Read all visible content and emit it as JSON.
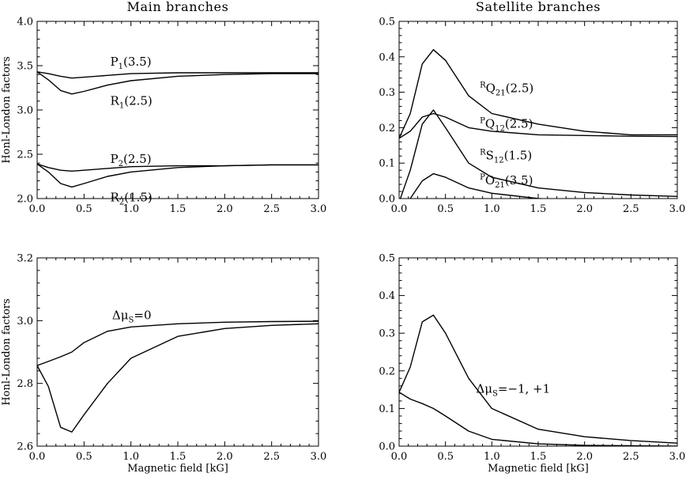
{
  "chart_data": [
    {
      "type": "line",
      "title": "Main branches",
      "xlabel": "",
      "ylabel": "Honl-London factors",
      "xlim": [
        0,
        3
      ],
      "ylim": [
        2,
        4
      ],
      "xticks": [
        "0.0",
        "0.5",
        "1.0",
        "1.5",
        "2.0",
        "2.5",
        "3.0"
      ],
      "yticks": [
        "2.0",
        "2.5",
        "3.0",
        "3.5",
        "4.0"
      ],
      "series": [
        {
          "x": [
            0,
            0.12,
            0.25,
            0.37,
            0.5,
            0.75,
            1.0,
            1.5,
            2.0,
            2.5,
            3.0
          ],
          "values": [
            3.43,
            3.41,
            3.38,
            3.36,
            3.37,
            3.39,
            3.41,
            3.42,
            3.42,
            3.42,
            3.42
          ]
        },
        {
          "x": [
            0,
            0.12,
            0.25,
            0.37,
            0.5,
            0.75,
            1.0,
            1.5,
            2.0,
            2.5,
            3.0
          ],
          "values": [
            3.43,
            3.34,
            3.22,
            3.18,
            3.21,
            3.28,
            3.33,
            3.38,
            3.4,
            3.41,
            3.41
          ]
        },
        {
          "x": [
            0,
            0.12,
            0.25,
            0.37,
            0.5,
            0.75,
            1.0,
            1.5,
            2.0,
            2.5,
            3.0
          ],
          "values": [
            2.39,
            2.35,
            2.32,
            2.31,
            2.32,
            2.34,
            2.36,
            2.37,
            2.37,
            2.38,
            2.38
          ]
        },
        {
          "x": [
            0,
            0.12,
            0.25,
            0.37,
            0.5,
            0.75,
            1.0,
            1.5,
            2.0,
            2.5,
            3.0
          ],
          "values": [
            2.39,
            2.3,
            2.17,
            2.13,
            2.17,
            2.25,
            2.3,
            2.35,
            2.37,
            2.38,
            2.38
          ]
        }
      ],
      "annotations": [
        {
          "base": "P",
          "sub": "1",
          "rest": "(3.5)",
          "x": 0.78,
          "y": 3.5
        },
        {
          "base": "R",
          "sub": "1",
          "rest": "(2.5)",
          "x": 0.78,
          "y": 3.06
        },
        {
          "base": "P",
          "sub": "2",
          "rest": "(2.5)",
          "x": 0.78,
          "y": 2.4
        },
        {
          "base": "R",
          "sub": "2",
          "rest": "(1.5)",
          "x": 0.78,
          "y": 1.97
        }
      ]
    },
    {
      "type": "line",
      "title": "Satellite branches",
      "xlabel": "",
      "ylabel": "",
      "xlim": [
        0,
        3
      ],
      "ylim": [
        0,
        0.5
      ],
      "xticks": [
        "0.0",
        "0.5",
        "1.0",
        "1.5",
        "2.0",
        "2.5",
        "3.0"
      ],
      "yticks": [
        "0.0",
        "0.1",
        "0.2",
        "0.3",
        "0.4",
        "0.5"
      ],
      "series": [
        {
          "x": [
            0,
            0.12,
            0.25,
            0.37,
            0.5,
            0.75,
            1.0,
            1.5,
            2.0,
            2.5,
            3.0
          ],
          "values": [
            0.17,
            0.24,
            0.38,
            0.42,
            0.39,
            0.29,
            0.24,
            0.21,
            0.19,
            0.18,
            0.18
          ]
        },
        {
          "x": [
            0,
            0.12,
            0.25,
            0.37,
            0.5,
            0.75,
            1.0,
            1.5,
            2.0,
            2.5,
            3.0
          ],
          "values": [
            0.17,
            0.19,
            0.23,
            0.24,
            0.23,
            0.2,
            0.19,
            0.18,
            0.178,
            0.176,
            0.175
          ]
        },
        {
          "x": [
            0,
            0.12,
            0.25,
            0.37,
            0.5,
            0.75,
            1.0,
            1.5,
            2.0,
            2.5,
            3.0
          ],
          "values": [
            -0.01,
            0.08,
            0.21,
            0.25,
            0.2,
            0.1,
            0.06,
            0.03,
            0.017,
            0.01,
            0.006
          ]
        },
        {
          "x": [
            0,
            0.12,
            0.25,
            0.37,
            0.5,
            0.75,
            1.0,
            1.5,
            2.0,
            2.5,
            3.0
          ],
          "values": [
            -0.01,
            0.0,
            0.05,
            0.07,
            0.06,
            0.03,
            0.015,
            0.0,
            -0.005,
            -0.008,
            -0.01
          ]
        }
      ],
      "annotations": [
        {
          "sup": "R",
          "base": "Q",
          "sub": "21",
          "rest": "(2.5)",
          "x": 0.87,
          "y": 0.3
        },
        {
          "sup": "P",
          "base": "Q",
          "sub": "12",
          "rest": "(2.5)",
          "x": 0.87,
          "y": 0.2
        },
        {
          "sup": "R",
          "base": "S",
          "sub": "12",
          "rest": "(1.5)",
          "x": 0.87,
          "y": 0.11
        },
        {
          "sup": "P",
          "base": "O",
          "sub": "21",
          "rest": "(3.5)",
          "x": 0.87,
          "y": 0.04
        }
      ]
    },
    {
      "type": "line",
      "title": "",
      "xlabel": "Magnetic field [kG]",
      "ylabel": "Honl-London factors",
      "xlim": [
        0,
        3
      ],
      "ylim": [
        2.6,
        3.2
      ],
      "xticks": [
        "0.0",
        "0.5",
        "1.0",
        "1.5",
        "2.0",
        "2.5",
        "3.0"
      ],
      "yticks": [
        "2.6",
        "2.8",
        "3.0",
        "3.2"
      ],
      "series": [
        {
          "x": [
            0,
            0.12,
            0.25,
            0.37,
            0.5,
            0.75,
            1.0,
            1.5,
            2.0,
            2.5,
            3.0
          ],
          "values": [
            2.857,
            2.87,
            2.885,
            2.9,
            2.93,
            2.966,
            2.98,
            2.99,
            2.995,
            2.997,
            2.998
          ]
        },
        {
          "x": [
            0,
            0.12,
            0.25,
            0.37,
            0.5,
            0.75,
            1.0,
            1.5,
            2.0,
            2.5,
            3.0
          ],
          "values": [
            2.857,
            2.79,
            2.66,
            2.645,
            2.7,
            2.8,
            2.88,
            2.95,
            2.975,
            2.985,
            2.99
          ]
        }
      ],
      "annotations": [
        {
          "base": "Δμ",
          "sub": "S",
          "rest": "=0",
          "x": 0.8,
          "y": 3.005
        }
      ]
    },
    {
      "type": "line",
      "title": "",
      "xlabel": "Magnetic field [kG]",
      "ylabel": "",
      "xlim": [
        0,
        3
      ],
      "ylim": [
        0,
        0.5
      ],
      "xticks": [
        "0.0",
        "0.5",
        "1.0",
        "1.5",
        "2.0",
        "2.5",
        "3.0"
      ],
      "yticks": [
        "0.0",
        "0.1",
        "0.2",
        "0.3",
        "0.4",
        "0.5"
      ],
      "series": [
        {
          "x": [
            0,
            0.12,
            0.25,
            0.37,
            0.5,
            0.75,
            1.0,
            1.5,
            2.0,
            2.5,
            3.0
          ],
          "values": [
            0.143,
            0.21,
            0.33,
            0.348,
            0.3,
            0.18,
            0.1,
            0.045,
            0.025,
            0.015,
            0.008
          ]
        },
        {
          "x": [
            0,
            0.12,
            0.25,
            0.37,
            0.5,
            0.75,
            1.0,
            1.5,
            2.0,
            2.5,
            3.0
          ],
          "values": [
            0.143,
            0.125,
            0.113,
            0.1,
            0.08,
            0.04,
            0.018,
            0.006,
            0.002,
            0.001,
            0.0
          ]
        }
      ],
      "annotations": [
        {
          "base": "Δμ",
          "sub": "S",
          "rest": "=−1, +1",
          "x": 0.83,
          "y": 0.142
        }
      ]
    }
  ]
}
